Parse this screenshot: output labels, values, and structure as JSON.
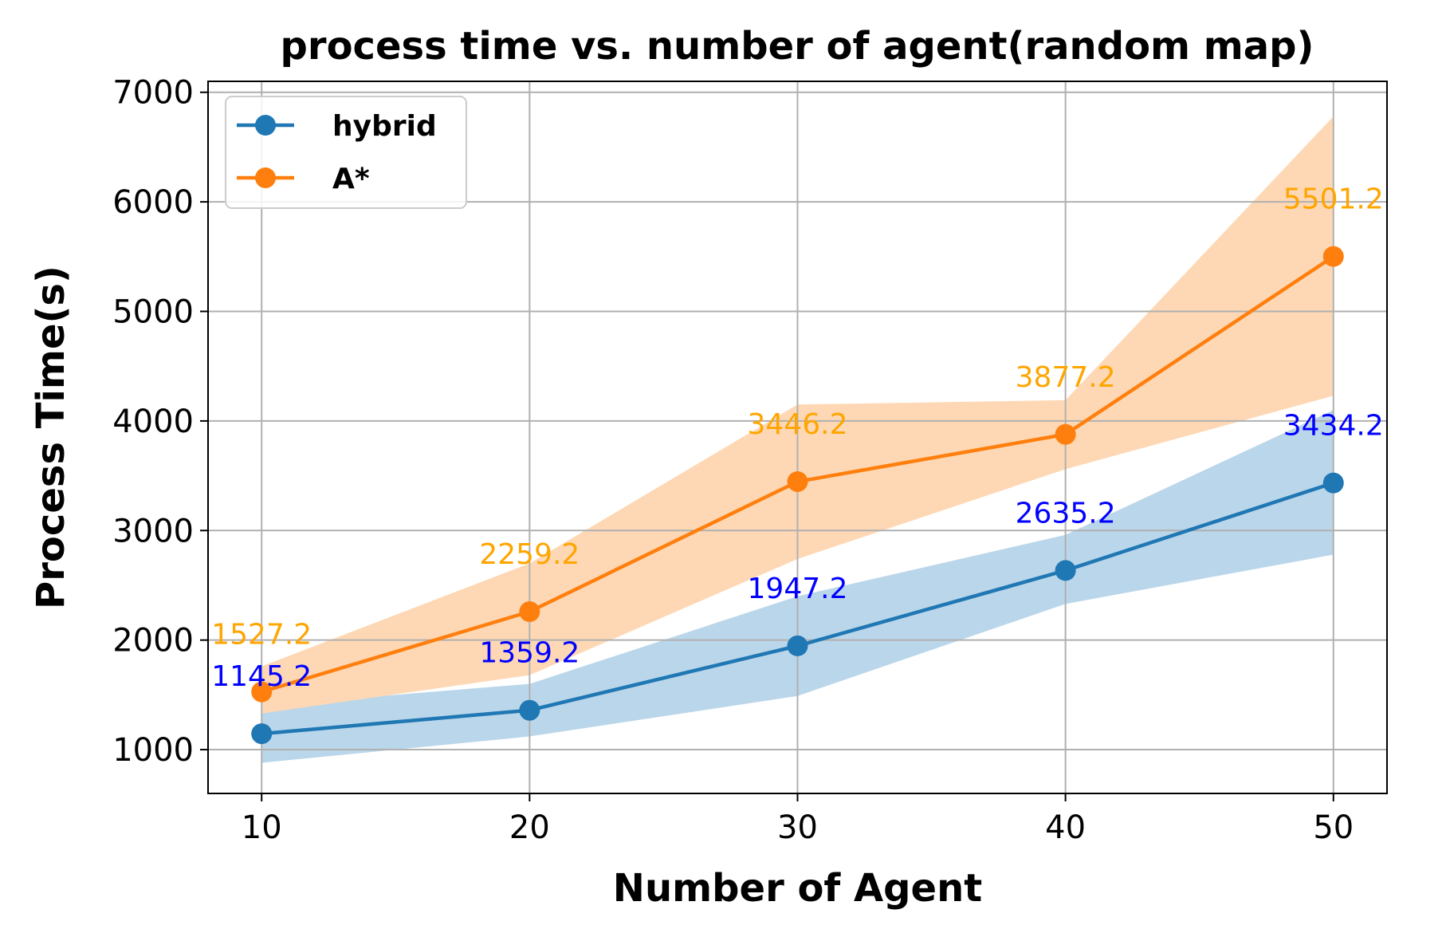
{
  "chart_data": {
    "type": "line",
    "title": "process time vs. number of agent(random map)",
    "xlabel": "Number of  Agent",
    "ylabel": "Process Time(s)",
    "x": [
      10,
      20,
      30,
      40,
      50
    ],
    "xlim": [
      8,
      52
    ],
    "ylim": [
      600,
      7100
    ],
    "xticks": [
      10,
      20,
      30,
      40,
      50
    ],
    "yticks": [
      1000,
      2000,
      3000,
      4000,
      5000,
      6000,
      7000
    ],
    "grid": true,
    "legend_position": "upper-left",
    "series": [
      {
        "name": "hybrid",
        "color": "#1f77b4",
        "band_color": "#bad6ea",
        "label_color": "#0000ff",
        "values": [
          1145.2,
          1359.2,
          1947.2,
          2635.2,
          3434.2
        ],
        "band_upper": [
          1400,
          1600,
          2400,
          2960,
          4100
        ],
        "band_lower": [
          880,
          1120,
          1490,
          2330,
          2780
        ],
        "labels": [
          "1145.2",
          "1359.2",
          "1947.2",
          "2635.2",
          "3434.2"
        ]
      },
      {
        "name": "A*",
        "color": "#ff7f0e",
        "band_color": "#fed8b4",
        "label_color": "#ffa500",
        "values": [
          1527.2,
          2259.2,
          3446.2,
          3877.2,
          5501.2
        ],
        "band_upper": [
          1760,
          2700,
          4150,
          4190,
          6780
        ],
        "band_lower": [
          1330,
          1680,
          2740,
          3560,
          4230
        ],
        "labels": [
          "1527.2",
          "2259.2",
          "3446.2",
          "3877.2",
          "5501.2"
        ]
      }
    ]
  }
}
